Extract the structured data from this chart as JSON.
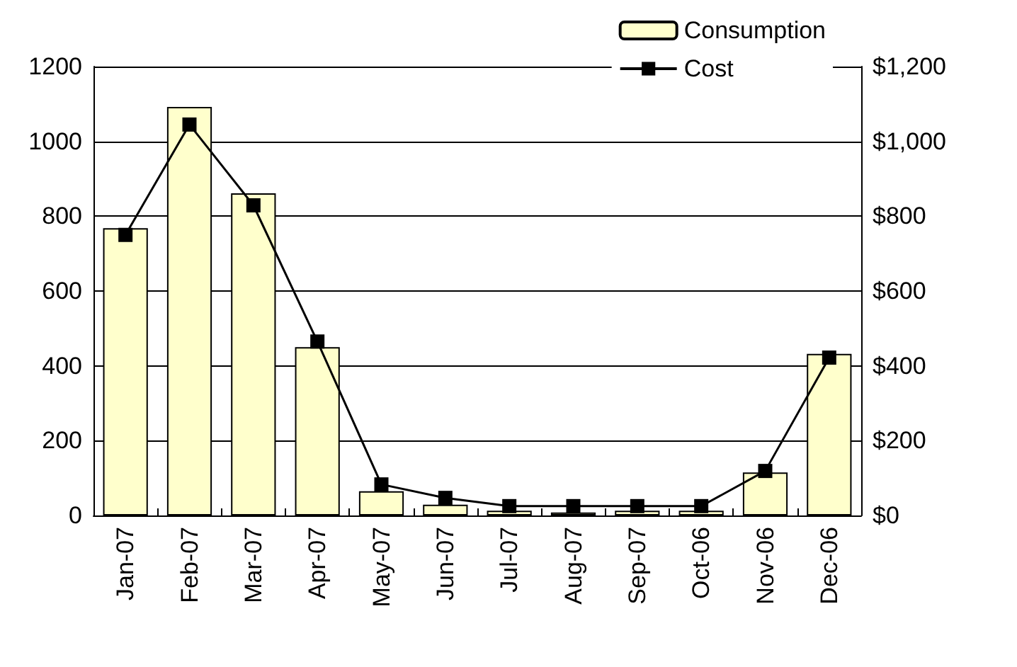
{
  "chart_data": {
    "type": "bar",
    "categories": [
      "Jan-07",
      "Feb-07",
      "Mar-07",
      "Apr-07",
      "May-07",
      "Jun-07",
      "Jul-07",
      "Aug-07",
      "Sep-07",
      "Oct-06",
      "Nov-06",
      "Dec-06"
    ],
    "series": [
      {
        "name": "Consumption",
        "color": "#ffffcc",
        "values": [
          768,
          1092,
          861,
          450,
          65,
          29,
          13,
          8,
          13,
          13,
          115,
          432
        ]
      },
      {
        "name": "Cost",
        "type": "line",
        "axis": "y2",
        "color": "#000000",
        "marker": "square",
        "values": [
          750,
          1045,
          829,
          465,
          83,
          47,
          25,
          25,
          25,
          25,
          119,
          422
        ]
      }
    ],
    "ylim": [
      0,
      1200
    ],
    "yticks": [
      0,
      200,
      400,
      600,
      800,
      1000,
      1200
    ],
    "y2lim": [
      0,
      1200
    ],
    "y2ticks": [
      {
        "value": 0,
        "label": "$0"
      },
      {
        "value": 200,
        "label": "$200"
      },
      {
        "value": 400,
        "label": "$400"
      },
      {
        "value": 600,
        "label": "$600"
      },
      {
        "value": 800,
        "label": "$800"
      },
      {
        "value": 1000,
        "label": "$1,000"
      },
      {
        "value": 1200,
        "label": "$1,200"
      }
    ],
    "grid": "y",
    "legend": "top right"
  }
}
